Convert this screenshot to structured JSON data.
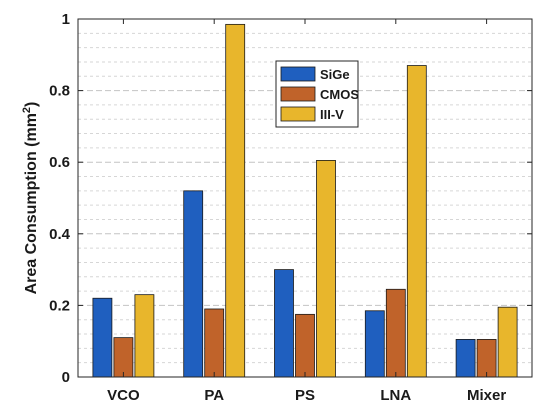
{
  "chart_data": {
    "type": "bar",
    "categories": [
      "VCO",
      "PA",
      "PS",
      "LNA",
      "Mixer"
    ],
    "series": [
      {
        "name": "SiGe",
        "color": "#1f5fbf",
        "values": [
          0.22,
          0.52,
          0.3,
          0.185,
          0.105
        ]
      },
      {
        "name": "CMOS",
        "color": "#c0632a",
        "values": [
          0.11,
          0.19,
          0.175,
          0.245,
          0.105
        ]
      },
      {
        "name": "III-V",
        "color": "#e8b62c",
        "values": [
          0.23,
          0.985,
          0.605,
          0.87,
          0.195
        ]
      }
    ],
    "ylabel_main": "Area Consumption (mm",
    "ylabel_sup": "2",
    "ylabel_end": ")",
    "xlabel": "",
    "ylim": [
      0,
      1
    ],
    "yticks": [
      0,
      0.2,
      0.4,
      0.6,
      0.8,
      1
    ],
    "ytick_labels": [
      "0",
      "0.2",
      "0.4",
      "0.6",
      "0.8",
      "1"
    ],
    "grid": "major and minor y, dashed",
    "legend_position": "top-center"
  }
}
